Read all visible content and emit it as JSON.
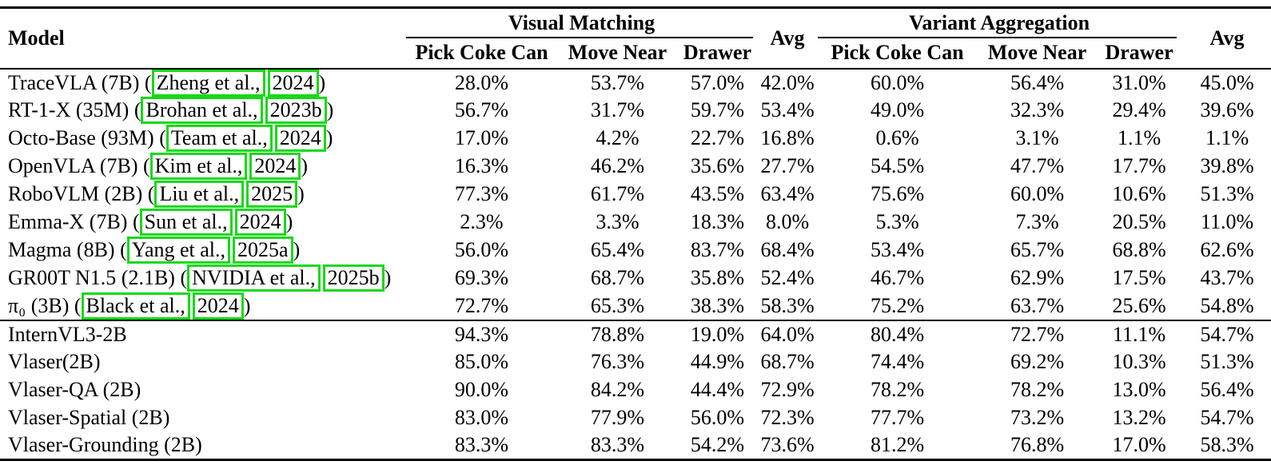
{
  "table": {
    "col_model": "Model",
    "group1": "Visual Matching",
    "group2": "Variant Aggregation",
    "avg": "Avg",
    "subcols": [
      "Pick Coke Can",
      "Move Near",
      "Drawer"
    ],
    "cite_open": "(",
    "cite_close": ")",
    "section_break_index": 9,
    "colors": {
      "citation_box_green": "#16d916"
    },
    "rows": [
      {
        "model": "TraceVLA (7B)",
        "cite_authors": "Zheng et al.,",
        "cite_year": "2024",
        "vm": [
          "28.0%",
          "53.7%",
          "57.0%",
          "42.0%"
        ],
        "va": [
          "60.0%",
          "56.4%",
          "31.0%",
          "45.0%"
        ]
      },
      {
        "model": "RT-1-X (35M)",
        "cite_authors": "Brohan et al.,",
        "cite_year": "2023b",
        "vm": [
          "56.7%",
          "31.7%",
          "59.7%",
          "53.4%"
        ],
        "va": [
          "49.0%",
          "32.3%",
          "29.4%",
          "39.6%"
        ]
      },
      {
        "model": "Octo-Base (93M)",
        "cite_authors": "Team et al.,",
        "cite_year": "2024",
        "vm": [
          "17.0%",
          "4.2%",
          "22.7%",
          "16.8%"
        ],
        "va": [
          "0.6%",
          "3.1%",
          "1.1%",
          "1.1%"
        ]
      },
      {
        "model": "OpenVLA (7B)",
        "cite_authors": "Kim et al.,",
        "cite_year": "2024",
        "vm": [
          "16.3%",
          "46.2%",
          "35.6%",
          "27.7%"
        ],
        "va": [
          "54.5%",
          "47.7%",
          "17.7%",
          "39.8%"
        ]
      },
      {
        "model": "RoboVLM (2B)",
        "cite_authors": "Liu et al.,",
        "cite_year": "2025",
        "vm": [
          "77.3%",
          "61.7%",
          "43.5%",
          "63.4%"
        ],
        "va": [
          "75.6%",
          "60.0%",
          "10.6%",
          "51.3%"
        ]
      },
      {
        "model": "Emma-X (7B)",
        "cite_authors": "Sun et al.,",
        "cite_year": "2024",
        "vm": [
          "2.3%",
          "3.3%",
          "18.3%",
          "8.0%"
        ],
        "va": [
          "5.3%",
          "7.3%",
          "20.5%",
          "11.0%"
        ]
      },
      {
        "model": "Magma (8B)",
        "cite_authors": "Yang et al.,",
        "cite_year": "2025a",
        "vm": [
          "56.0%",
          "65.4%",
          "83.7%",
          "68.4%"
        ],
        "va": [
          "53.4%",
          "65.7%",
          "68.8%",
          "62.6%"
        ]
      },
      {
        "model": "GR00T N1.5 (2.1B)",
        "cite_authors": "NVIDIA et al.,",
        "cite_year": "2025b",
        "vm": [
          "69.3%",
          "68.7%",
          "35.8%",
          "52.4%"
        ],
        "va": [
          "46.7%",
          "62.9%",
          "17.5%",
          "43.7%"
        ]
      },
      {
        "model": "π₀ (3B)",
        "cite_authors": "Black et al.,",
        "cite_year": "2024",
        "vm": [
          "72.7%",
          "65.3%",
          "38.3%",
          "58.3%"
        ],
        "va": [
          "75.2%",
          "63.7%",
          "25.6%",
          "54.8%"
        ]
      },
      {
        "model": "InternVL3-2B",
        "vm": [
          "94.3%",
          "78.8%",
          "19.0%",
          "64.0%"
        ],
        "va": [
          "80.4%",
          "72.7%",
          "11.1%",
          "54.7%"
        ]
      },
      {
        "model": "Vlaser(2B)",
        "vm": [
          "85.0%",
          "76.3%",
          "44.9%",
          "68.7%"
        ],
        "va": [
          "74.4%",
          "69.2%",
          "10.3%",
          "51.3%"
        ]
      },
      {
        "model": "Vlaser-QA (2B)",
        "vm": [
          "90.0%",
          "84.2%",
          "44.4%",
          "72.9%"
        ],
        "va": [
          "78.2%",
          "78.2%",
          "13.0%",
          "56.4%"
        ]
      },
      {
        "model": "Vlaser-Spatial (2B)",
        "vm": [
          "83.0%",
          "77.9%",
          "56.0%",
          "72.3%"
        ],
        "va": [
          "77.7%",
          "73.2%",
          "13.2%",
          "54.7%"
        ]
      },
      {
        "model": "Vlaser-Grounding (2B)",
        "vm": [
          "83.3%",
          "83.3%",
          "54.2%",
          "73.6%"
        ],
        "va": [
          "81.2%",
          "76.8%",
          "17.0%",
          "58.3%"
        ]
      }
    ]
  }
}
